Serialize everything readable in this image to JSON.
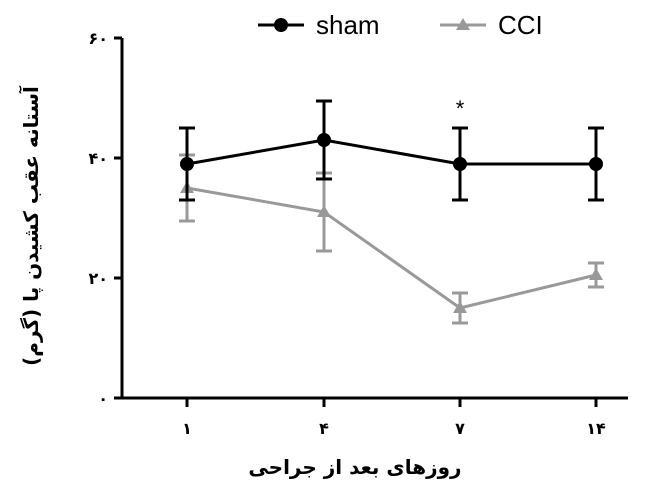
{
  "chart_data": {
    "type": "line",
    "categories": [
      "١",
      "۴",
      "٧",
      "١۴"
    ],
    "xlabel": "روزهای بعد از جراحی",
    "ylabel": "آستانه عقب کشیدن پا (گرم)",
    "ylim": [
      0,
      60
    ],
    "yticks": [
      0,
      20,
      40,
      60
    ],
    "ytick_labels": [
      "٠",
      "٢٠",
      "۴٠",
      "۶٠"
    ],
    "grid": false,
    "legend_position": "top",
    "series": [
      {
        "name": "sham",
        "color": "#000000",
        "marker": "circle",
        "values": [
          39,
          43,
          39,
          39
        ],
        "errors": [
          6,
          6.5,
          6,
          6
        ]
      },
      {
        "name": "CCI",
        "color": "#999999",
        "marker": "triangle",
        "values": [
          35,
          31,
          15,
          20.5
        ],
        "errors": [
          5.5,
          6.5,
          2.5,
          2
        ]
      }
    ],
    "annotations": [
      {
        "category": "٧",
        "text": "*"
      }
    ]
  }
}
